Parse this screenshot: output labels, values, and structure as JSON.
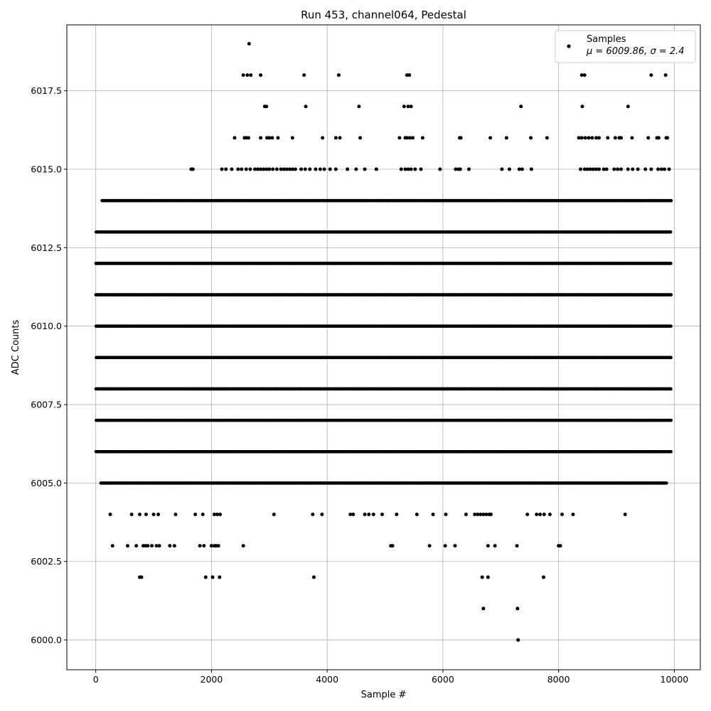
{
  "chart_data": {
    "type": "scatter",
    "title": "Run 453, channel064, Pedestal",
    "xlabel": "Sample #",
    "ylabel": "ADC Counts",
    "xlim": [
      -500,
      10450
    ],
    "ylim": [
      5999.05,
      6019.6
    ],
    "xticks": [
      0,
      2000,
      4000,
      6000,
      8000,
      10000
    ],
    "yticks": [
      6000.0,
      6002.5,
      6005.0,
      6007.5,
      6010.0,
      6012.5,
      6015.0,
      6017.5
    ],
    "xtick_labels": [
      "0",
      "2000",
      "4000",
      "6000",
      "8000",
      "10000"
    ],
    "ytick_labels": [
      "6000.0",
      "6002.5",
      "6005.0",
      "6007.5",
      "6010.0",
      "6012.5",
      "6015.0",
      "6017.5"
    ],
    "grid": true,
    "legend": {
      "position": "top-right",
      "label": "Samples",
      "stats": "μ = 6009.86, σ = 2.4"
    },
    "series": [
      {
        "name": "Samples",
        "color": "#000000",
        "marker": "dot",
        "dense_bands": [
          {
            "y": 6009,
            "x_range": [
              0,
              9950
            ]
          },
          {
            "y": 6010,
            "x_range": [
              0,
              9950
            ]
          },
          {
            "y": 6011,
            "x_range": [
              0,
              9950
            ]
          },
          {
            "y": 6012,
            "x_range": [
              0,
              9950
            ]
          },
          {
            "y": 6008,
            "x_range": [
              0,
              9950
            ]
          },
          {
            "y": 6007,
            "x_range": [
              0,
              9950
            ]
          },
          {
            "y": 6013,
            "x_range": [
              0,
              9950
            ]
          },
          {
            "y": 6006,
            "x_range": [
              0,
              9950
            ]
          },
          {
            "y": 6014,
            "x_range": [
              100,
              9950
            ]
          },
          {
            "y": 6005,
            "x_range": [
              80,
              9870
            ]
          }
        ],
        "points": [
          [
            2650,
            6019
          ],
          [
            2550,
            6018
          ],
          [
            2620,
            6018
          ],
          [
            2680,
            6018
          ],
          [
            2850,
            6018
          ],
          [
            3600,
            6018
          ],
          [
            4200,
            6018
          ],
          [
            5380,
            6018
          ],
          [
            5420,
            6018
          ],
          [
            8400,
            6018
          ],
          [
            8450,
            6018
          ],
          [
            9600,
            6018
          ],
          [
            9850,
            6018
          ],
          [
            2920,
            6017
          ],
          [
            2950,
            6017
          ],
          [
            3630,
            6017
          ],
          [
            4550,
            6017
          ],
          [
            5330,
            6017
          ],
          [
            5400,
            6017
          ],
          [
            5450,
            6017
          ],
          [
            7350,
            6017
          ],
          [
            8410,
            6017
          ],
          [
            9200,
            6017
          ],
          [
            2400,
            6016
          ],
          [
            2570,
            6016
          ],
          [
            2600,
            6016
          ],
          [
            2640,
            6016
          ],
          [
            2850,
            6016
          ],
          [
            2960,
            6016
          ],
          [
            3000,
            6016
          ],
          [
            3050,
            6016
          ],
          [
            3150,
            6016
          ],
          [
            3400,
            6016
          ],
          [
            3920,
            6016
          ],
          [
            4150,
            6016
          ],
          [
            4220,
            6016
          ],
          [
            4570,
            6016
          ],
          [
            5250,
            6016
          ],
          [
            5350,
            6016
          ],
          [
            5380,
            6016
          ],
          [
            5430,
            6016
          ],
          [
            5480,
            6016
          ],
          [
            5650,
            6016
          ],
          [
            6290,
            6016
          ],
          [
            6310,
            6016
          ],
          [
            6820,
            6016
          ],
          [
            7100,
            6016
          ],
          [
            7520,
            6016
          ],
          [
            7800,
            6016
          ],
          [
            8350,
            6016
          ],
          [
            8400,
            6016
          ],
          [
            8460,
            6016
          ],
          [
            8520,
            6016
          ],
          [
            8580,
            6016
          ],
          [
            8650,
            6016
          ],
          [
            8700,
            6016
          ],
          [
            8850,
            6016
          ],
          [
            8980,
            6016
          ],
          [
            9050,
            6016
          ],
          [
            9080,
            6016
          ],
          [
            9270,
            6016
          ],
          [
            9550,
            6016
          ],
          [
            9700,
            6016
          ],
          [
            9730,
            6016
          ],
          [
            9860,
            6016
          ],
          [
            9880,
            6016
          ],
          [
            1650,
            6015
          ],
          [
            1680,
            6015
          ],
          [
            2180,
            6015
          ],
          [
            2250,
            6015
          ],
          [
            2350,
            6015
          ],
          [
            2460,
            6015
          ],
          [
            2520,
            6015
          ],
          [
            2600,
            6015
          ],
          [
            2670,
            6015
          ],
          [
            2750,
            6015
          ],
          [
            2800,
            6015
          ],
          [
            2850,
            6015
          ],
          [
            2900,
            6015
          ],
          [
            2950,
            6015
          ],
          [
            3000,
            6015
          ],
          [
            3060,
            6015
          ],
          [
            3130,
            6015
          ],
          [
            3200,
            6015
          ],
          [
            3250,
            6015
          ],
          [
            3300,
            6015
          ],
          [
            3350,
            6015
          ],
          [
            3400,
            6015
          ],
          [
            3450,
            6015
          ],
          [
            3550,
            6015
          ],
          [
            3620,
            6015
          ],
          [
            3700,
            6015
          ],
          [
            3800,
            6015
          ],
          [
            3880,
            6015
          ],
          [
            3950,
            6015
          ],
          [
            4050,
            6015
          ],
          [
            4150,
            6015
          ],
          [
            4350,
            6015
          ],
          [
            4500,
            6015
          ],
          [
            4650,
            6015
          ],
          [
            4850,
            6015
          ],
          [
            5280,
            6015
          ],
          [
            5350,
            6015
          ],
          [
            5400,
            6015
          ],
          [
            5450,
            6015
          ],
          [
            5520,
            6015
          ],
          [
            5620,
            6015
          ],
          [
            5950,
            6015
          ],
          [
            6220,
            6015
          ],
          [
            6270,
            6015
          ],
          [
            6300,
            6015
          ],
          [
            6450,
            6015
          ],
          [
            7020,
            6015
          ],
          [
            7150,
            6015
          ],
          [
            7320,
            6015
          ],
          [
            7370,
            6015
          ],
          [
            7530,
            6015
          ],
          [
            8380,
            6015
          ],
          [
            8450,
            6015
          ],
          [
            8500,
            6015
          ],
          [
            8550,
            6015
          ],
          [
            8600,
            6015
          ],
          [
            8650,
            6015
          ],
          [
            8700,
            6015
          ],
          [
            8780,
            6015
          ],
          [
            8830,
            6015
          ],
          [
            8960,
            6015
          ],
          [
            9020,
            6015
          ],
          [
            9080,
            6015
          ],
          [
            9200,
            6015
          ],
          [
            9280,
            6015
          ],
          [
            9370,
            6015
          ],
          [
            9500,
            6015
          ],
          [
            9600,
            6015
          ],
          [
            9720,
            6015
          ],
          [
            9780,
            6015
          ],
          [
            9830,
            6015
          ],
          [
            9910,
            6015
          ],
          [
            250,
            6004
          ],
          [
            620,
            6004
          ],
          [
            760,
            6004
          ],
          [
            870,
            6004
          ],
          [
            1000,
            6004
          ],
          [
            1080,
            6004
          ],
          [
            1380,
            6004
          ],
          [
            1720,
            6004
          ],
          [
            1850,
            6004
          ],
          [
            2050,
            6004
          ],
          [
            2100,
            6004
          ],
          [
            2150,
            6004
          ],
          [
            3080,
            6004
          ],
          [
            3750,
            6004
          ],
          [
            3910,
            6004
          ],
          [
            4400,
            6004
          ],
          [
            4450,
            6004
          ],
          [
            4650,
            6004
          ],
          [
            4720,
            6004
          ],
          [
            4800,
            6004
          ],
          [
            4950,
            6004
          ],
          [
            5200,
            6004
          ],
          [
            5550,
            6004
          ],
          [
            5830,
            6004
          ],
          [
            6050,
            6004
          ],
          [
            6400,
            6004
          ],
          [
            6550,
            6004
          ],
          [
            6600,
            6004
          ],
          [
            6650,
            6004
          ],
          [
            6700,
            6004
          ],
          [
            6750,
            6004
          ],
          [
            6800,
            6004
          ],
          [
            6830,
            6004
          ],
          [
            7460,
            6004
          ],
          [
            7620,
            6004
          ],
          [
            7680,
            6004
          ],
          [
            7750,
            6004
          ],
          [
            7850,
            6004
          ],
          [
            8060,
            6004
          ],
          [
            8250,
            6004
          ],
          [
            9150,
            6004
          ],
          [
            290,
            6003
          ],
          [
            550,
            6003
          ],
          [
            700,
            6003
          ],
          [
            820,
            6003
          ],
          [
            860,
            6003
          ],
          [
            900,
            6003
          ],
          [
            970,
            6003
          ],
          [
            1050,
            6003
          ],
          [
            1100,
            6003
          ],
          [
            1280,
            6003
          ],
          [
            1360,
            6003
          ],
          [
            1800,
            6003
          ],
          [
            1870,
            6003
          ],
          [
            2000,
            6003
          ],
          [
            2050,
            6003
          ],
          [
            2080,
            6003
          ],
          [
            2120,
            6003
          ],
          [
            2550,
            6003
          ],
          [
            5100,
            6003
          ],
          [
            5130,
            6003
          ],
          [
            5770,
            6003
          ],
          [
            6040,
            6003
          ],
          [
            6210,
            6003
          ],
          [
            6780,
            6003
          ],
          [
            6900,
            6003
          ],
          [
            7280,
            6003
          ],
          [
            8000,
            6003
          ],
          [
            8030,
            6003
          ],
          [
            760,
            6002
          ],
          [
            790,
            6002
          ],
          [
            1900,
            6002
          ],
          [
            2020,
            6002
          ],
          [
            2140,
            6002
          ],
          [
            3770,
            6002
          ],
          [
            6680,
            6002
          ],
          [
            6780,
            6002
          ],
          [
            7740,
            6002
          ],
          [
            6700,
            6001
          ],
          [
            7290,
            6001
          ],
          [
            7300,
            6000
          ]
        ]
      }
    ]
  }
}
